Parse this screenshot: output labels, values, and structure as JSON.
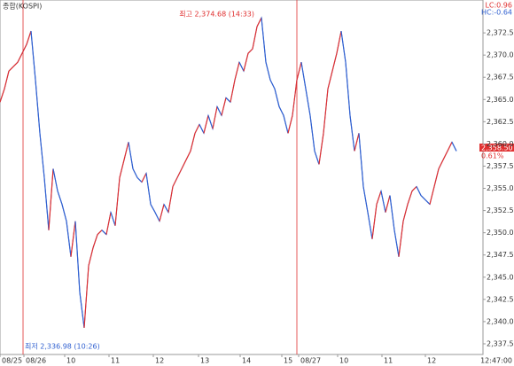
{
  "chart_data": {
    "type": "line",
    "title": "종합(KOSPI)",
    "legend": [
      "LC:0.96",
      "HC:-0.64"
    ],
    "annotations": {
      "high": "최고 2,374.68 (14:33)",
      "low": "최저 2,336.98 (10:26)",
      "last_price": "2,358.50",
      "last_change": "0.61%",
      "time": "12:47:00"
    },
    "up_color": "#e03030",
    "down_color": "#3060d0",
    "xlim": [
      0,
      545
    ],
    "ylim": [
      2336.3,
      2376.2
    ],
    "xticks": [
      {
        "value": 0,
        "label": "08/25"
      },
      {
        "value": 27,
        "label": "08/26"
      },
      {
        "value": 73,
        "label": "10"
      },
      {
        "value": 123,
        "label": "11"
      },
      {
        "value": 173,
        "label": "12"
      },
      {
        "value": 224,
        "label": "13"
      },
      {
        "value": 271,
        "label": "14"
      },
      {
        "value": 318,
        "label": "15"
      },
      {
        "value": 337,
        "label": "08/27"
      },
      {
        "value": 381,
        "label": "10"
      },
      {
        "value": 431,
        "label": "11"
      },
      {
        "value": 480,
        "label": "12"
      }
    ],
    "yticks": [
      {
        "value": 2337.5,
        "label": "2,337.50"
      },
      {
        "value": 2340,
        "label": "2,340.00"
      },
      {
        "value": 2342.5,
        "label": "2,342.50"
      },
      {
        "value": 2345,
        "label": "2,345.00"
      },
      {
        "value": 2347.5,
        "label": "2,347.50"
      },
      {
        "value": 2350,
        "label": "2,350.00"
      },
      {
        "value": 2352.5,
        "label": "2,352.50"
      },
      {
        "value": 2355,
        "label": "2,355.00"
      },
      {
        "value": 2357.5,
        "label": "2,357.50"
      },
      {
        "value": 2360,
        "label": "2,360.00"
      },
      {
        "value": 2362.5,
        "label": "2,362.50"
      },
      {
        "value": 2365,
        "label": "2,365.00"
      },
      {
        "value": 2367.5,
        "label": "2,367.50"
      },
      {
        "value": 2370,
        "label": "2,370.00"
      },
      {
        "value": 2372.5,
        "label": "2,372.50"
      }
    ],
    "x": [
      0,
      5,
      10,
      15,
      20,
      25,
      30,
      35,
      40,
      45,
      50,
      55,
      60,
      65,
      70,
      75,
      80,
      85,
      90,
      95,
      100,
      105,
      110,
      115,
      120,
      125,
      130,
      135,
      140,
      145,
      150,
      155,
      160,
      165,
      170,
      175,
      180,
      185,
      190,
      195,
      200,
      205,
      210,
      215,
      220,
      225,
      230,
      235,
      240,
      245,
      250,
      255,
      260,
      265,
      270,
      275,
      280,
      285,
      290,
      295,
      300,
      305,
      310,
      315,
      320,
      325,
      330,
      335,
      340,
      345,
      350,
      355,
      360,
      365,
      370,
      375,
      380,
      385,
      390,
      395,
      400,
      405,
      410,
      415,
      420,
      425,
      430,
      435,
      440,
      445,
      450,
      455,
      460,
      465,
      470,
      475,
      480,
      485,
      490,
      495,
      500,
      505,
      510,
      515
    ],
    "series": [
      {
        "name": "KOSPI",
        "values": [
          2364.7,
          2366.2,
          2368.2,
          2368.7,
          2369.2,
          2370.2,
          2371.2,
          2372.7,
          2367.2,
          2361.2,
          2356.2,
          2350.3,
          2357.2,
          2354.7,
          2353.2,
          2351.3,
          2347.3,
          2351.3,
          2343.3,
          2339.3,
          2346.3,
          2348.3,
          2349.8,
          2350.3,
          2349.8,
          2352.3,
          2350.8,
          2356.2,
          2358.2,
          2360.2,
          2357.2,
          2356.2,
          2355.7,
          2356.7,
          2353.2,
          2352.3,
          2351.3,
          2353.2,
          2352.3,
          2355.2,
          2356.2,
          2357.2,
          2358.2,
          2359.2,
          2361.2,
          2362.2,
          2361.2,
          2363.2,
          2361.7,
          2364.2,
          2363.2,
          2365.2,
          2364.7,
          2367.2,
          2369.2,
          2368.2,
          2370.2,
          2370.7,
          2373.2,
          2374.2,
          2369.2,
          2367.2,
          2366.2,
          2364.2,
          2363.2,
          2361.2,
          2363.2,
          2367.2,
          2369.2,
          2366.2,
          2363.2,
          2359.2,
          2357.7,
          2361.2,
          2366.2,
          2368.2,
          2370.2,
          2372.7,
          2369.2,
          2363.2,
          2359.2,
          2361.2,
          2355.2,
          2352.3,
          2349.3,
          2353.2,
          2354.7,
          2352.3,
          2354.2,
          2350.3,
          2347.3,
          2351.3,
          2353.2,
          2354.7,
          2355.2,
          2354.2,
          2353.7,
          2353.2,
          2355.2,
          2357.2,
          2358.2,
          2359.2,
          2360.2,
          2359.2
        ]
      }
    ]
  }
}
